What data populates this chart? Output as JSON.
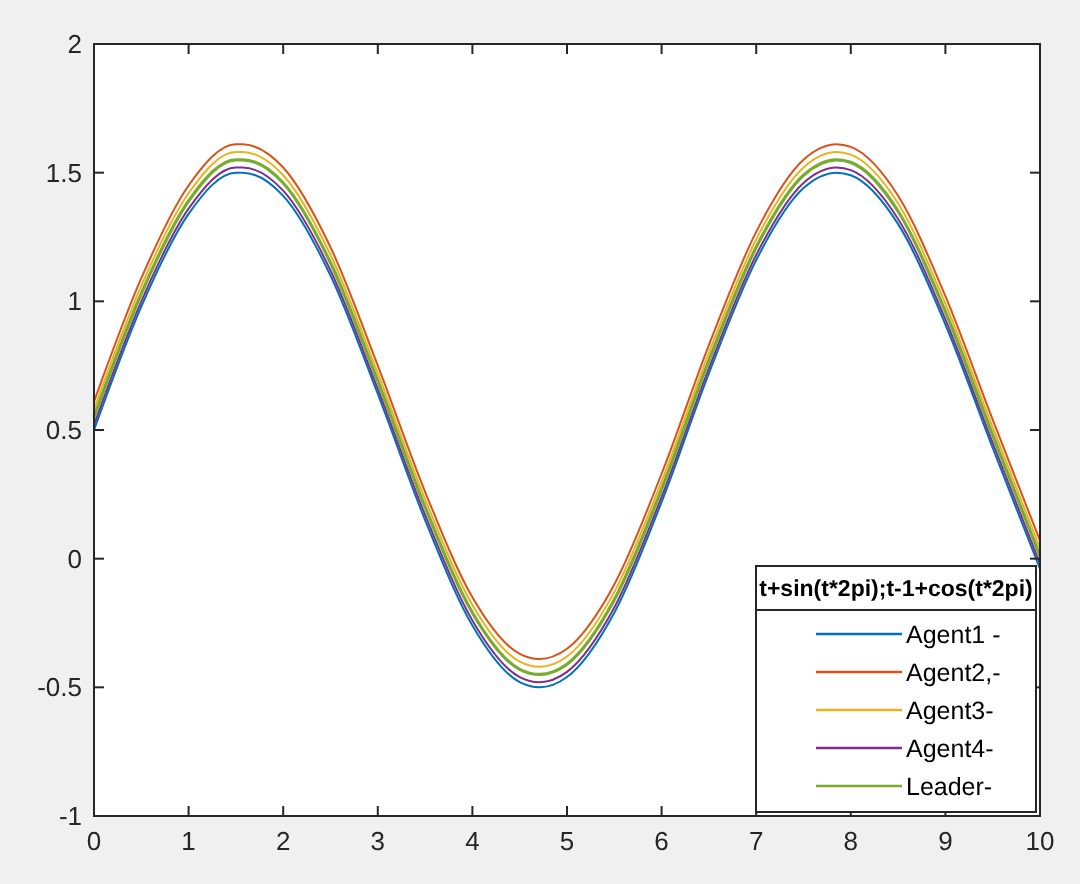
{
  "chart_data": {
    "type": "line",
    "x": [
      0,
      0.5,
      1,
      1.5,
      1.57,
      2,
      2.5,
      3,
      3.5,
      4,
      4.5,
      4.71,
      5,
      5.5,
      6,
      6.5,
      7,
      7.5,
      7.85,
      8,
      8.5,
      9,
      9.5,
      10
    ],
    "series": [
      {
        "name": "Agent1 -",
        "color": "#0072bd",
        "values": [
          0.5,
          0.98,
          1.34,
          1.5,
          1.5,
          1.41,
          1.1,
          0.64,
          0.15,
          -0.26,
          -0.48,
          -0.5,
          -0.46,
          -0.21,
          0.22,
          0.72,
          1.16,
          1.44,
          1.5,
          1.49,
          1.3,
          0.91,
          0.43,
          -0.04
        ]
      },
      {
        "name": "Agent2,-",
        "color": "#d95319",
        "values": [
          0.61,
          1.09,
          1.45,
          1.61,
          1.61,
          1.52,
          1.21,
          0.75,
          0.26,
          -0.15,
          -0.37,
          -0.39,
          -0.35,
          -0.1,
          0.33,
          0.83,
          1.27,
          1.55,
          1.61,
          1.6,
          1.41,
          1.02,
          0.54,
          0.07
        ]
      },
      {
        "name": "Agent3-",
        "color": "#edb120",
        "values": [
          0.58,
          1.06,
          1.42,
          1.58,
          1.58,
          1.49,
          1.18,
          0.72,
          0.23,
          -0.18,
          -0.4,
          -0.42,
          -0.38,
          -0.13,
          0.3,
          0.8,
          1.24,
          1.52,
          1.58,
          1.57,
          1.38,
          0.99,
          0.51,
          0.04
        ]
      },
      {
        "name": "Agent4-",
        "color": "#7e2f8e",
        "values": [
          0.52,
          1.0,
          1.36,
          1.52,
          1.52,
          1.43,
          1.12,
          0.66,
          0.17,
          -0.24,
          -0.46,
          -0.48,
          -0.44,
          -0.19,
          0.24,
          0.74,
          1.18,
          1.46,
          1.52,
          1.51,
          1.32,
          0.93,
          0.45,
          -0.02
        ]
      },
      {
        "name": "Leader-",
        "color": "#77ac30",
        "values": [
          0.55,
          1.03,
          1.39,
          1.55,
          1.55,
          1.46,
          1.15,
          0.69,
          0.2,
          -0.21,
          -0.43,
          -0.45,
          -0.41,
          -0.16,
          0.27,
          0.77,
          1.21,
          1.49,
          1.55,
          1.54,
          1.35,
          0.96,
          0.48,
          0.01
        ]
      }
    ],
    "legend_title": "t+sin(t*2pi);t-1+cos(t*2pi)",
    "legend": "bottom right",
    "xlim": [
      0,
      10
    ],
    "xticks": [
      0,
      1,
      2,
      3,
      4,
      5,
      6,
      7,
      8,
      9,
      10
    ],
    "ylim": [
      -1,
      2
    ],
    "yticks": [
      -1,
      -0.5,
      0,
      0.5,
      1,
      1.5,
      2
    ],
    "grid": false
  }
}
